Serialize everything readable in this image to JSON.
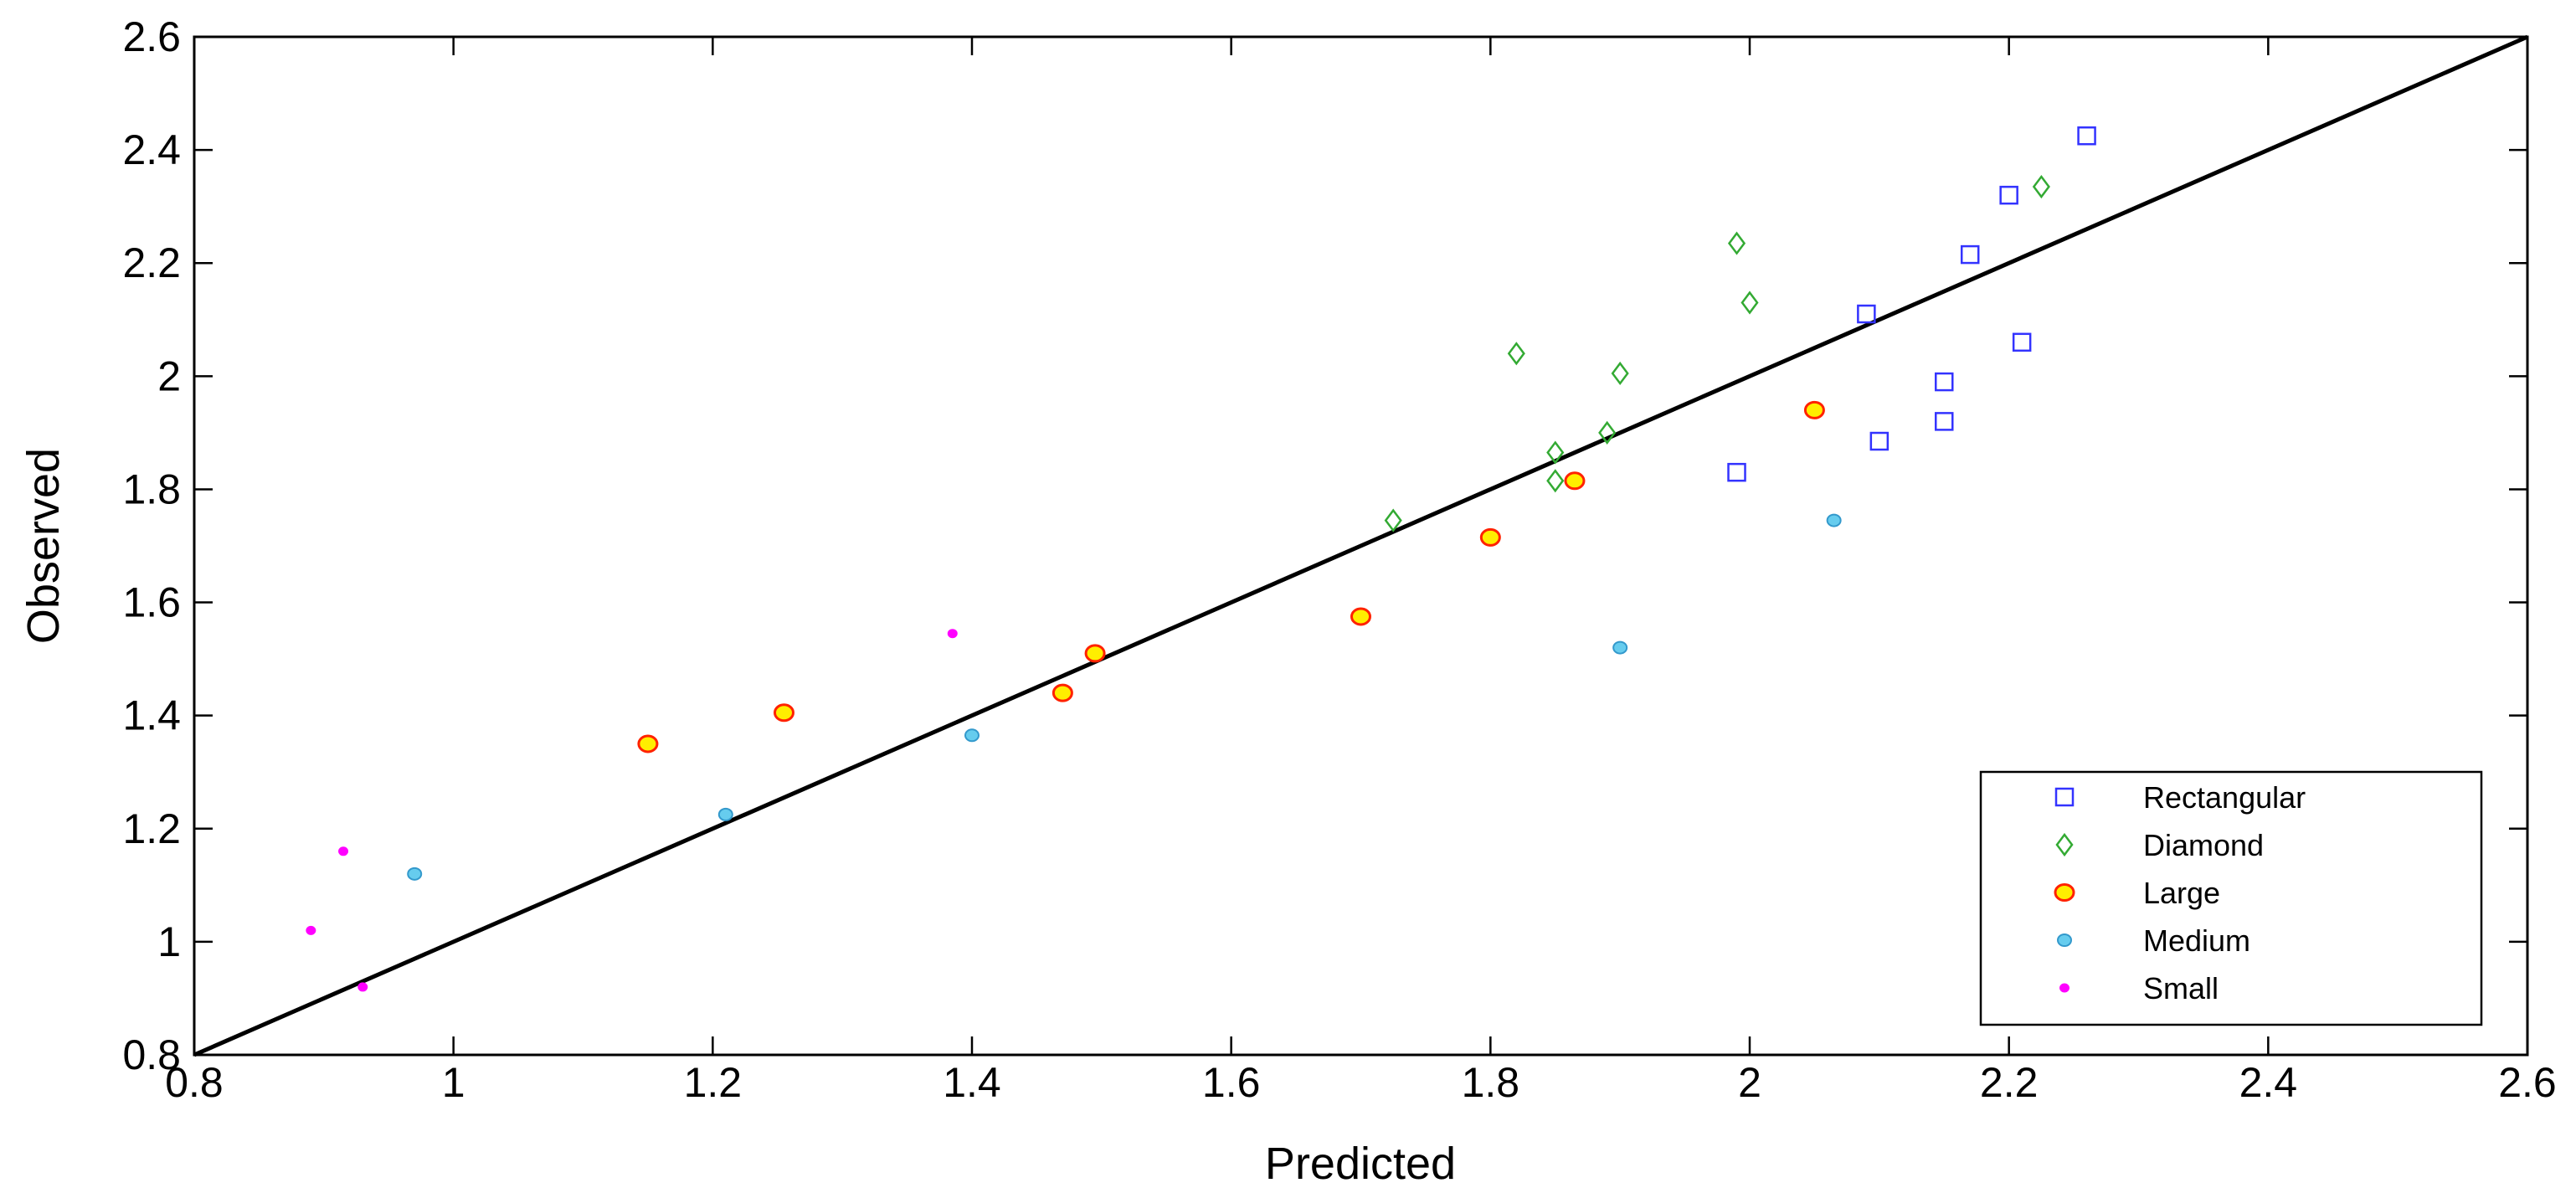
{
  "chart_data": {
    "type": "scatter",
    "title": "",
    "xlabel": "Predicted",
    "ylabel": "Observed",
    "xlim": [
      0.8,
      2.6
    ],
    "ylim": [
      0.8,
      2.6
    ],
    "xticks": [
      "0.8",
      "1",
      "1.2",
      "1.4",
      "1.6",
      "1.8",
      "2",
      "2.2",
      "2.4",
      "2.6"
    ],
    "yticks": [
      "0.8",
      "1",
      "1.2",
      "1.4",
      "1.6",
      "1.8",
      "2",
      "2.2",
      "2.4",
      "2.6"
    ],
    "grid": false,
    "legend_position": "bottom-right",
    "reference_line": {
      "from": [
        0.8,
        0.8
      ],
      "to": [
        2.6,
        2.6
      ],
      "color": "#000000"
    },
    "series": [
      {
        "name": "Rectangular",
        "marker": "square",
        "color": "#3333ff",
        "x": [
          1.99,
          2.09,
          2.1,
          2.15,
          2.15,
          2.17,
          2.2,
          2.21,
          2.26
        ],
        "y": [
          1.83,
          2.11,
          1.885,
          1.99,
          1.92,
          2.215,
          2.32,
          2.06,
          2.425
        ]
      },
      {
        "name": "Diamond",
        "marker": "diamond",
        "color": "#33aa33",
        "x": [
          1.725,
          1.82,
          1.85,
          1.85,
          1.89,
          1.9,
          1.99,
          2.0,
          2.225
        ],
        "y": [
          1.745,
          2.04,
          1.865,
          1.815,
          1.9,
          2.005,
          2.235,
          2.13,
          2.335
        ]
      },
      {
        "name": "Large",
        "marker": "circle-large",
        "color": "#ff2200",
        "fill": "#ffee00",
        "x": [
          1.15,
          1.255,
          1.47,
          1.495,
          1.7,
          1.8,
          1.865,
          2.05
        ],
        "y": [
          1.35,
          1.405,
          1.44,
          1.51,
          1.575,
          1.715,
          1.815,
          1.94
        ]
      },
      {
        "name": "Medium",
        "marker": "circle-medium",
        "color": "#3399cc",
        "fill": "#66ccee",
        "x": [
          0.97,
          1.21,
          1.4,
          1.9,
          2.065
        ],
        "y": [
          1.12,
          1.225,
          1.365,
          1.52,
          1.745
        ]
      },
      {
        "name": "Small",
        "marker": "circle-small",
        "color": "#ff00ff",
        "x": [
          0.89,
          0.915,
          0.93,
          1.385
        ],
        "y": [
          1.02,
          1.16,
          0.92,
          1.545
        ]
      }
    ]
  }
}
